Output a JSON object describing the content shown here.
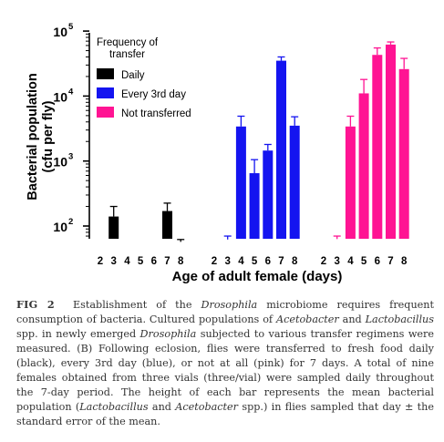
{
  "chart_data": {
    "type": "bar",
    "yscale": "log",
    "ylim": [
      60,
      100000
    ],
    "ylabel_line1": "Bacterial population",
    "ylabel_line2": "(cfu per fly)",
    "xlabel": "Age of adult female (days)",
    "yticks": [
      {
        "value": 100,
        "base": "10",
        "exp": "2"
      },
      {
        "value": 1000,
        "base": "10",
        "exp": "3"
      },
      {
        "value": 10000,
        "base": "10",
        "exp": "4"
      },
      {
        "value": 100000,
        "base": "10",
        "exp": "5"
      }
    ],
    "categories": [
      "2",
      "3",
      "4",
      "5",
      "6",
      "7",
      "8"
    ],
    "legend_title_line1": "Frequency of",
    "legend_title_line2": "transfer",
    "legend_position": "top-left",
    "series": [
      {
        "name": "Daily",
        "color": "#000000",
        "values": [
          null,
          140,
          null,
          null,
          null,
          170,
          57
        ],
        "errors": [
          null,
          200,
          null,
          null,
          null,
          225,
          62
        ]
      },
      {
        "name": "Every 3rd day",
        "color": "#1414f0",
        "values": [
          null,
          62,
          3400,
          650,
          1450,
          35000,
          3500
        ],
        "errors": [
          null,
          70,
          4900,
          1050,
          1800,
          40000,
          4800
        ]
      },
      {
        "name": "Not transferred",
        "color": "#ff1493",
        "values": [
          null,
          63,
          3400,
          11000,
          43000,
          62000,
          26000
        ],
        "errors": [
          null,
          70,
          4900,
          18000,
          55000,
          68000,
          38000
        ]
      }
    ]
  },
  "caption": {
    "label": "FIG 2",
    "line1": "Establishment of the ",
    "genus1": "Drosophila",
    "line1b": " microbiome requires frequent consumption of bacteria. Cultured populations of ",
    "genus2": "Acetobacter",
    "and1": " and ",
    "genus3": "Lactobacillus",
    "line2": " spp. in newly emerged ",
    "genus4": "Drosophila",
    "line3": " subjected to various transfer regimens were measured. (B) Following eclosion, flies were transferred to fresh food daily (black), every 3rd day (blue), or not at all (pink) for 7 days. A total of nine females obtained from three vials (three/vial) were sampled daily throughout the 7-day period. The height of each bar represents the mean bacterial population (",
    "genus5": "Lactobacillus",
    "and2": " and ",
    "genus6": "Acetobacter",
    "line4": " spp.) in flies sampled that day ± the standard error of the mean."
  }
}
